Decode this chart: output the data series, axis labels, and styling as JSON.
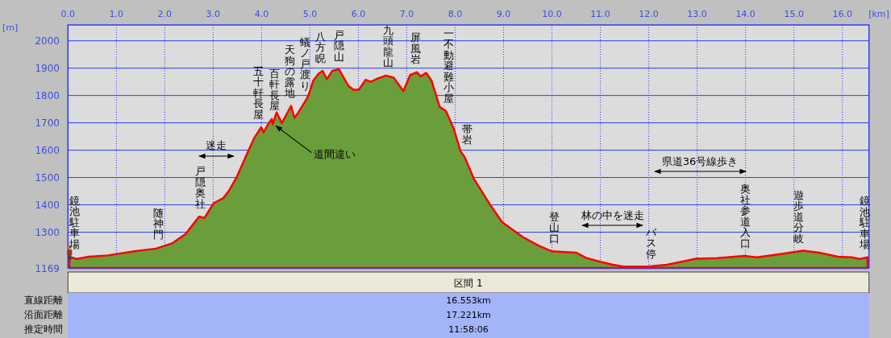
{
  "chart_data": {
    "type": "area",
    "xlabel": "[km]",
    "ylabel": "[m]",
    "xlim": [
      0,
      16.55
    ],
    "ylim": [
      1169,
      2058
    ],
    "xticks": [
      {
        "value": 0,
        "label": "0.0"
      },
      {
        "value": 1,
        "label": "1.0"
      },
      {
        "value": 2,
        "label": "2.0"
      },
      {
        "value": 3,
        "label": "3.0"
      },
      {
        "value": 4,
        "label": "4.0"
      },
      {
        "value": 5,
        "label": "5.0"
      },
      {
        "value": 6,
        "label": "6.0"
      },
      {
        "value": 7,
        "label": "7.0"
      },
      {
        "value": 8,
        "label": "8.0"
      },
      {
        "value": 9,
        "label": "9.0"
      },
      {
        "value": 10,
        "label": "10.0"
      },
      {
        "value": 11,
        "label": "11.0"
      },
      {
        "value": 12,
        "label": "12.0"
      },
      {
        "value": 13,
        "label": "13.0"
      },
      {
        "value": 14,
        "label": "14.0"
      },
      {
        "value": 15,
        "label": "15.0"
      },
      {
        "value": 16,
        "label": "16.0"
      }
    ],
    "yticks": [
      1169,
      1300,
      1400,
      1500,
      1600,
      1700,
      1800,
      1900,
      2000
    ],
    "grid": true,
    "series": [
      {
        "color": "#6a9e3a",
        "x": [
          0.03,
          0.18,
          0.43,
          0.82,
          1.37,
          1.82,
          2.15,
          2.43,
          2.71,
          2.82,
          3.01,
          3.21,
          3.32,
          3.49,
          3.71,
          3.85,
          3.99,
          4.04,
          4.15,
          4.21,
          4.23,
          4.31,
          4.42,
          4.61,
          4.68,
          4.76,
          4.93,
          4.98,
          5.07,
          5.18,
          5.26,
          5.35,
          5.46,
          5.6,
          5.79,
          5.9,
          6.01,
          6.15,
          6.26,
          6.37,
          6.57,
          6.73,
          6.93,
          7.07,
          7.21,
          7.29,
          7.4,
          7.51,
          7.68,
          7.81,
          7.97,
          8.11,
          8.19,
          8.39,
          8.72,
          8.97,
          9.39,
          9.72,
          10.0,
          10.5,
          10.72,
          10.93,
          11.26,
          11.48,
          11.98,
          12.37,
          12.76,
          12.97,
          13.41,
          13.97,
          14.24,
          14.8,
          15.19,
          15.52,
          15.91,
          16.19,
          16.36,
          16.52
        ],
        "values": [
          1210,
          1202,
          1210,
          1215,
          1230,
          1240,
          1259,
          1293,
          1357,
          1352,
          1406,
          1425,
          1450,
          1503,
          1591,
          1645,
          1684,
          1665,
          1699,
          1714,
          1694,
          1738,
          1699,
          1762,
          1718,
          1738,
          1787,
          1806,
          1855,
          1880,
          1890,
          1860,
          1890,
          1896,
          1836,
          1821,
          1821,
          1857,
          1850,
          1860,
          1873,
          1865,
          1816,
          1875,
          1885,
          1870,
          1883,
          1855,
          1758,
          1743,
          1679,
          1596,
          1577,
          1494,
          1401,
          1337,
          1283,
          1251,
          1230,
          1225,
          1205,
          1195,
          1181,
          1174,
          1174,
          1181,
          1195,
          1203,
          1205,
          1213,
          1208,
          1222,
          1232,
          1225,
          1210,
          1208,
          1202,
          1208
        ]
      }
    ],
    "annotations": [
      {
        "text": "鏡池駐車場",
        "x": 0.13,
        "y": 1210
      },
      {
        "text": "随神門",
        "x": 1.87,
        "y": 1245
      },
      {
        "text": "戸隠奥社",
        "x": 2.73,
        "y": 1357
      },
      "迷走",
      {
        "text": "五十軒長屋",
        "x": 3.94,
        "y": 1684
      },
      {
        "text": "百軒長屋",
        "x": 4.26,
        "y": 1714
      },
      {
        "text": "天狗の露地",
        "x": 4.58,
        "y": 1762
      },
      {
        "text": "蟻ノ戸渡り",
        "x": 4.9,
        "y": 1790
      },
      {
        "text": "八方睨",
        "x": 5.22,
        "y": 1890
      },
      {
        "text": "戸隠山",
        "x": 5.6,
        "y": 1896
      },
      {
        "text": "九頭龍山",
        "x": 6.62,
        "y": 1873
      },
      {
        "text": "屏風岩",
        "x": 7.19,
        "y": 1885
      },
      {
        "text": "一不動避難小屋",
        "x": 7.87,
        "y": 1743
      },
      {
        "text": "帯岩",
        "x": 8.25,
        "y": 1590
      },
      {
        "text": "道間違い",
        "x": 4.25,
        "y": 1700
      },
      {
        "text": "登山口",
        "x": 10.05,
        "y": 1230
      },
      "林の中を迷走",
      {
        "text": "バス停",
        "x": 12.05,
        "y": 1174
      },
      "県道36号線歩き",
      {
        "text": "奥社参道入口",
        "x": 14.0,
        "y": 1213
      },
      {
        "text": "遊歩道分岐",
        "x": 15.1,
        "y": 1230
      },
      {
        "text": "鏡池駐車場",
        "x": 16.46,
        "y": 1208
      },
      "区間 1",
      "直線距離",
      "16.553km",
      "沿面距離",
      "17.221km",
      "推定時間",
      "11:58:06"
    ]
  }
}
